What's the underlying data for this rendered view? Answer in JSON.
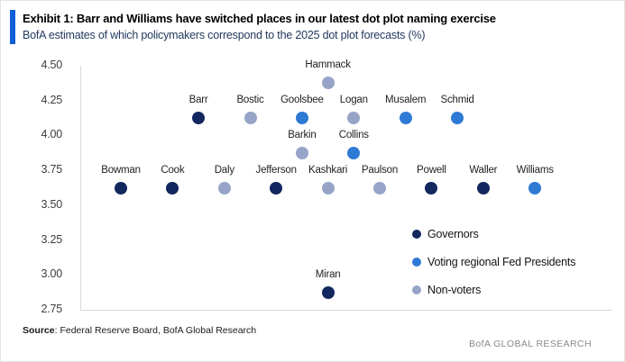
{
  "header": {
    "title": "Exhibit 1: Barr and Williams have switched places in our latest dot plot naming exercise",
    "subtitle": "BofA estimates of which policymakers correspond to the 2025 dot plot forecasts (%)"
  },
  "colors": {
    "governor": "#13275f",
    "voter": "#2e7ad5",
    "nonvoter": "#97a4c8",
    "accent_bar": "#0f5ed7",
    "axis_line": "#d9d9d9"
  },
  "legend": {
    "items": [
      {
        "label": "Governors",
        "role": "governor"
      },
      {
        "label": "Voting regional Fed Presidents",
        "role": "voter"
      },
      {
        "label": "Non-voters",
        "role": "nonvoter"
      }
    ]
  },
  "chart_data": {
    "type": "scatter",
    "title": "BofA estimates of which policymakers correspond to the 2025 dot plot forecasts (%)",
    "ylabel": "",
    "ylim": [
      2.75,
      4.5
    ],
    "yticks": [
      4.5,
      4.25,
      4.0,
      3.75,
      3.5,
      3.25,
      3.0,
      2.75
    ],
    "grid": false,
    "legend_position": "inside-right",
    "series_key": {
      "governor": "Governors",
      "voter": "Voting regional Fed Presidents",
      "nonvoter": "Non-voters"
    },
    "points": [
      {
        "name": "Bowman",
        "value": 3.625,
        "col": 0,
        "role": "governor"
      },
      {
        "name": "Cook",
        "value": 3.625,
        "col": 1,
        "role": "governor"
      },
      {
        "name": "Daly",
        "value": 3.625,
        "col": 2,
        "role": "nonvoter"
      },
      {
        "name": "Jefferson",
        "value": 3.625,
        "col": 3,
        "role": "governor"
      },
      {
        "name": "Kashkari",
        "value": 3.625,
        "col": 4,
        "role": "nonvoter"
      },
      {
        "name": "Paulson",
        "value": 3.625,
        "col": 5,
        "role": "nonvoter"
      },
      {
        "name": "Powell",
        "value": 3.625,
        "col": 6,
        "role": "governor"
      },
      {
        "name": "Waller",
        "value": 3.625,
        "col": 7,
        "role": "governor"
      },
      {
        "name": "Williams",
        "value": 3.625,
        "col": 8,
        "role": "voter"
      },
      {
        "name": "Barr",
        "value": 4.125,
        "col": 1.5,
        "role": "governor"
      },
      {
        "name": "Bostic",
        "value": 4.125,
        "col": 2.5,
        "role": "nonvoter"
      },
      {
        "name": "Goolsbee",
        "value": 4.125,
        "col": 3.5,
        "role": "voter"
      },
      {
        "name": "Logan",
        "value": 4.125,
        "col": 4.5,
        "role": "nonvoter"
      },
      {
        "name": "Musalem",
        "value": 4.125,
        "col": 5.5,
        "role": "voter"
      },
      {
        "name": "Schmid",
        "value": 4.125,
        "col": 6.5,
        "role": "voter"
      },
      {
        "name": "Barkin",
        "value": 3.875,
        "col": 3.5,
        "role": "nonvoter"
      },
      {
        "name": "Collins",
        "value": 3.875,
        "col": 4.5,
        "role": "voter"
      },
      {
        "name": "Hammack",
        "value": 4.375,
        "col": 4,
        "role": "nonvoter"
      },
      {
        "name": "Miran",
        "value": 2.875,
        "col": 4,
        "role": "governor"
      }
    ]
  },
  "footer": {
    "source_bold": "Source",
    "source_text": ": Federal Reserve Board, BofA Global Research",
    "brand": "BofA GLOBAL RESEARCH"
  }
}
